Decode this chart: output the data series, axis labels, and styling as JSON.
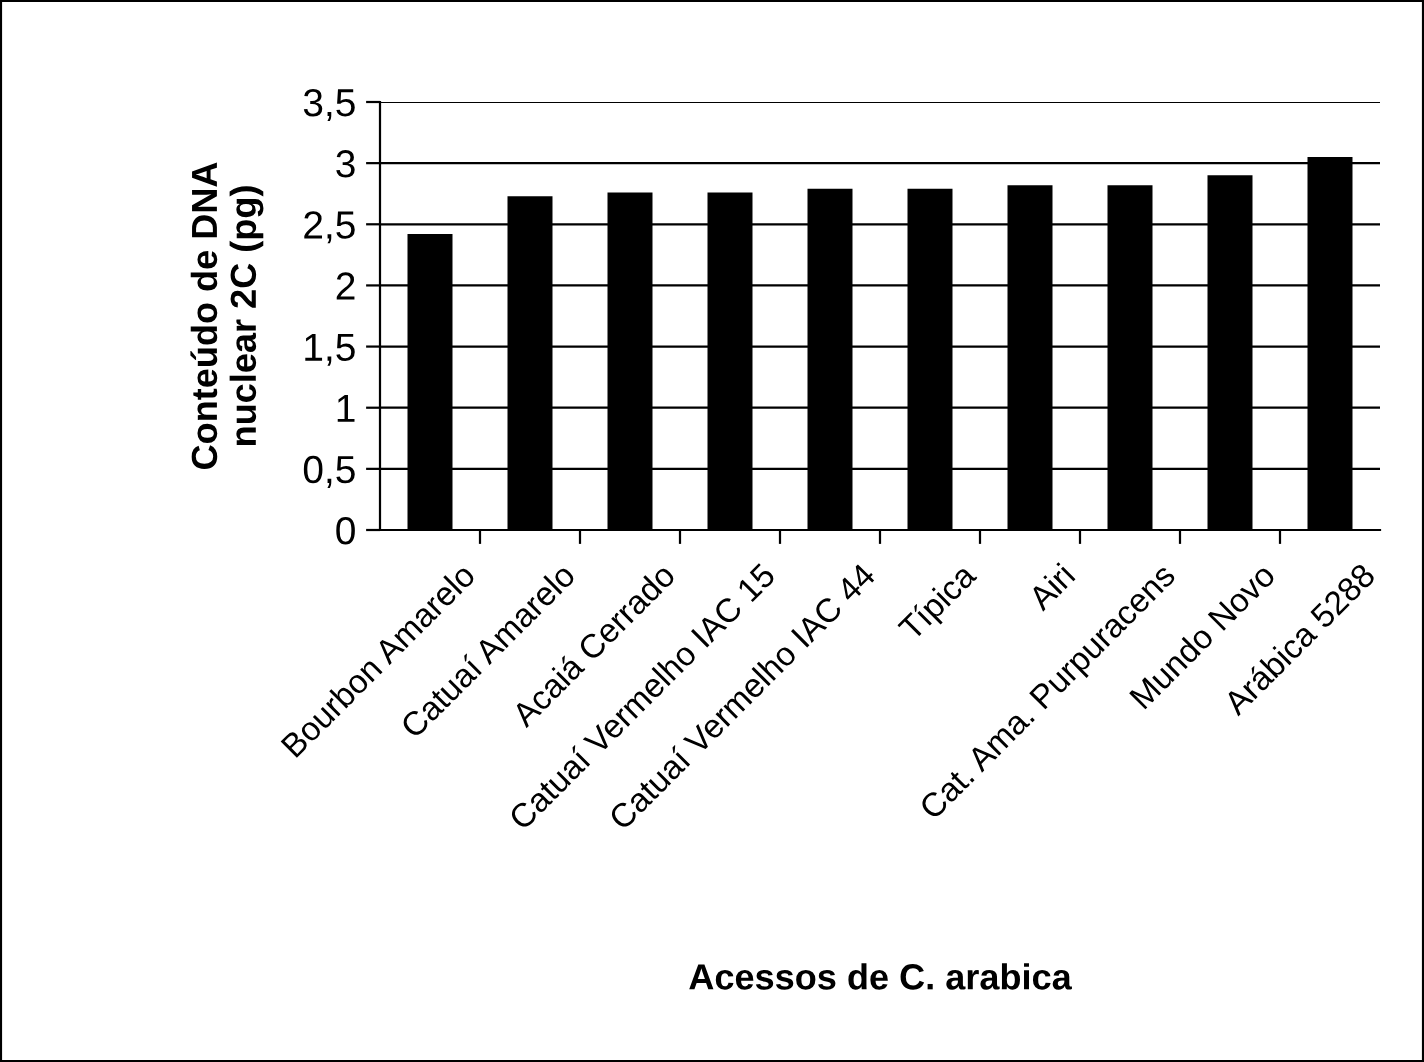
{
  "chart_data": {
    "type": "bar",
    "xlabel": "Acessos de C. arabica",
    "ylabel": "Conteúdo de DNA\nnuclear 2C (pg)",
    "categories": [
      "Bourbon Amarelo",
      "Catuaí Amarelo",
      "Acaiá Cerrado",
      "Catuaí Vermelho IAC 15",
      "Catuaí Vermelho IAC 44",
      "Típica",
      "Airi",
      "Cat. Ama. Purpuracens",
      "Mundo Novo",
      "Arábica 5288"
    ],
    "values": [
      2.42,
      2.73,
      2.76,
      2.76,
      2.79,
      2.79,
      2.82,
      2.82,
      2.9,
      3.05
    ],
    "color": "#000000",
    "ylim": [
      0,
      3.5
    ],
    "yticks": [
      0,
      {
        "value": 0.5,
        "label": "0,5"
      },
      1,
      {
        "value": 1.5,
        "label": "1,5"
      },
      2,
      {
        "value": 2.5,
        "label": "2,5"
      },
      3,
      {
        "value": 3.5,
        "label": "3,5"
      }
    ],
    "grid": "y"
  }
}
